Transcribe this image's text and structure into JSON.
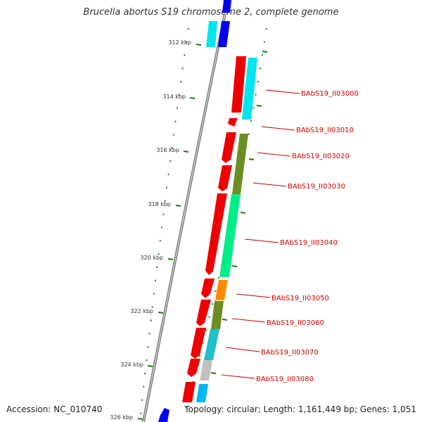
{
  "title": "Brucella abortus S19 chromosome 2, complete genome",
  "accession_label": "Accession: NC_010740",
  "summary_label": "Topology: circular; Length: 1,161,449 bp; Genes: 1,051",
  "ticks": [
    "312 kbp",
    "314 kbp",
    "316 kbp",
    "318 kbp",
    "320 kbp",
    "322 kbp",
    "324 kbp",
    "326 kbp"
  ],
  "gene_labels": [
    "BAbS19_II03000",
    "BAbS19_II03010",
    "BAbS19_II03020",
    "BAbS19_II03030",
    "BAbS19_II03040",
    "BAbS19_II03050",
    "BAbS19_II03060",
    "BAbS19_II03070",
    "BAbS19_II03080"
  ],
  "colors": {
    "gene_forward": "#ee0000",
    "backbone": "#888888",
    "tick": "#006600",
    "label": "#cc0000",
    "cyan": "#00e5ee",
    "olive": "#6b8e23",
    "spring_green": "#00ee88",
    "orange": "#ff8c00",
    "teal": "#20c0c8",
    "grey": "#c0c0c0",
    "blue": "#0000ee",
    "sky": "#00b8f0"
  }
}
